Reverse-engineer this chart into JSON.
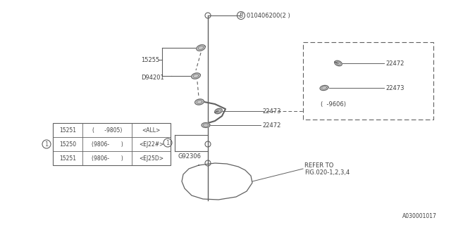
{
  "background_color": "#ffffff",
  "line_color": "#606060",
  "text_color": "#404040",
  "part_number": "A030001017",
  "bolt_label": "B 010406200(2 )",
  "table_data": [
    [
      "15251",
      "(      -9805)",
      "<ALL>"
    ],
    [
      "15250",
      "(9806-       )",
      "<EJ22#>"
    ],
    [
      "15251",
      "(9806-       )",
      "<EJ25D>"
    ]
  ],
  "refer_text1": "REFER TO",
  "refer_text2": "FIG.020-1,2,3,4",
  "label_15255": "15255",
  "label_D94201": "D94201",
  "label_G92306": "G92306",
  "label_22473a": "22473",
  "label_22472a": "22472",
  "label_22472b": "22472",
  "label_22473b": "22473",
  "label_9606": "(  -9606)"
}
